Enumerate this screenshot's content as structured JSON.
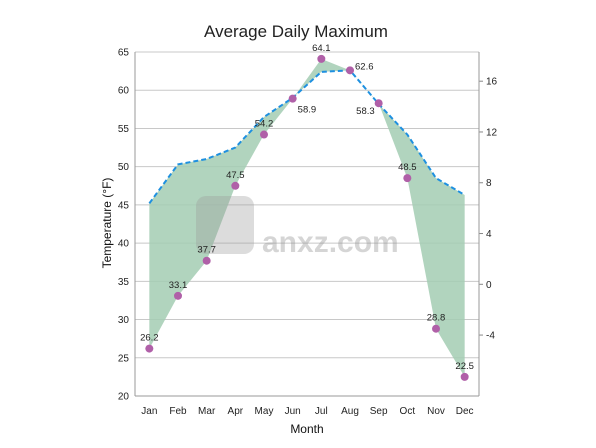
{
  "chart_data": {
    "type": "line",
    "title": "Average Daily Maximum",
    "xlabel": "Month",
    "ylabel": "Temperature (°F)",
    "categories": [
      "Jan",
      "Feb",
      "Mar",
      "Apr",
      "May",
      "Jun",
      "Jul",
      "Aug",
      "Sep",
      "Oct",
      "Nov",
      "Dec"
    ],
    "ylim": [
      20,
      65
    ],
    "yticks": [
      20,
      25,
      30,
      35,
      40,
      45,
      50,
      55,
      60,
      65
    ],
    "y2lim": [
      -8.8,
      18.3
    ],
    "y2ticks": [
      -4,
      0,
      4,
      8,
      12,
      16
    ],
    "grid": true,
    "series": [
      {
        "role": "points",
        "values": [
          26.2,
          33.1,
          37.7,
          47.5,
          54.2,
          58.9,
          64.1,
          62.6,
          58.3,
          48.5,
          28.8,
          22.5
        ],
        "labels": [
          "26.2",
          "33.1",
          "37.7",
          "47.5",
          "54.2",
          "58.9",
          "64.1",
          "62.6",
          "58.3",
          "48.5",
          "28.8",
          "22.5"
        ],
        "color": "#b060a8"
      },
      {
        "role": "dashed-line",
        "values": [
          45.2,
          50.3,
          51.0,
          52.5,
          56.5,
          59.0,
          62.4,
          62.6,
          58.2,
          54.2,
          48.5,
          46.3
        ],
        "color": "#1e90e0"
      }
    ],
    "fill_color": "#a3cdb3",
    "watermark": "anxz.com"
  }
}
